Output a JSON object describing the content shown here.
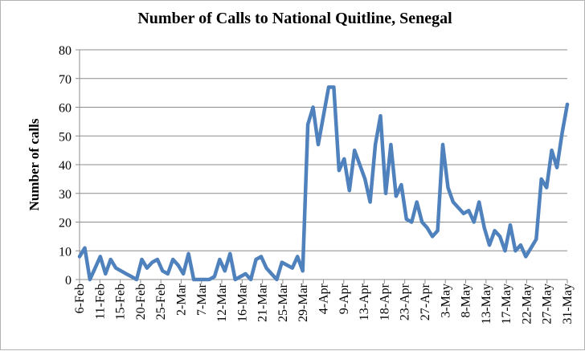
{
  "chart_data": {
    "type": "line",
    "title": "Number of Calls to National Quitline, Senegal",
    "ylabel": "Number of calls",
    "xlabel": "",
    "ylim": [
      0,
      80
    ],
    "yticks": [
      0,
      10,
      20,
      30,
      40,
      50,
      60,
      70,
      80
    ],
    "grid": true,
    "legend": "none",
    "line_color": "#4f81bd",
    "x_tick_labels": [
      "6-Feb",
      "11-Feb",
      "15-Feb",
      "20-Feb",
      "25-Feb",
      "2-Mar",
      "7-Mar",
      "12-Mar",
      "16-Mar",
      "21-Mar",
      "25-Mar",
      "29-Mar",
      "4-Apr",
      "9-Apr",
      "13-Apr",
      "18-Apr",
      "23-Apr",
      "27-Apr",
      "3-May",
      "8-May",
      "13-May",
      "17-May",
      "22-May",
      "27-May",
      "31-May"
    ],
    "values": [
      8,
      11,
      0,
      4,
      8,
      2,
      7,
      4,
      3,
      2,
      1,
      0,
      7,
      4,
      6,
      7,
      3,
      2,
      7,
      5,
      2,
      9,
      0,
      0,
      0,
      0,
      1,
      7,
      3,
      9,
      0,
      1,
      2,
      0,
      7,
      8,
      4,
      2,
      0,
      6,
      5,
      4,
      8,
      3,
      54,
      60,
      47,
      57,
      67,
      67,
      38,
      42,
      31,
      45,
      40,
      35,
      27,
      47,
      57,
      30,
      47,
      29,
      33,
      21,
      20,
      27,
      20,
      18,
      15,
      17,
      47,
      32,
      27,
      25,
      23,
      24,
      20,
      27,
      18,
      12,
      17,
      15,
      10,
      19,
      10,
      12,
      8,
      11,
      14,
      35,
      32,
      45,
      39,
      51,
      61
    ]
  }
}
